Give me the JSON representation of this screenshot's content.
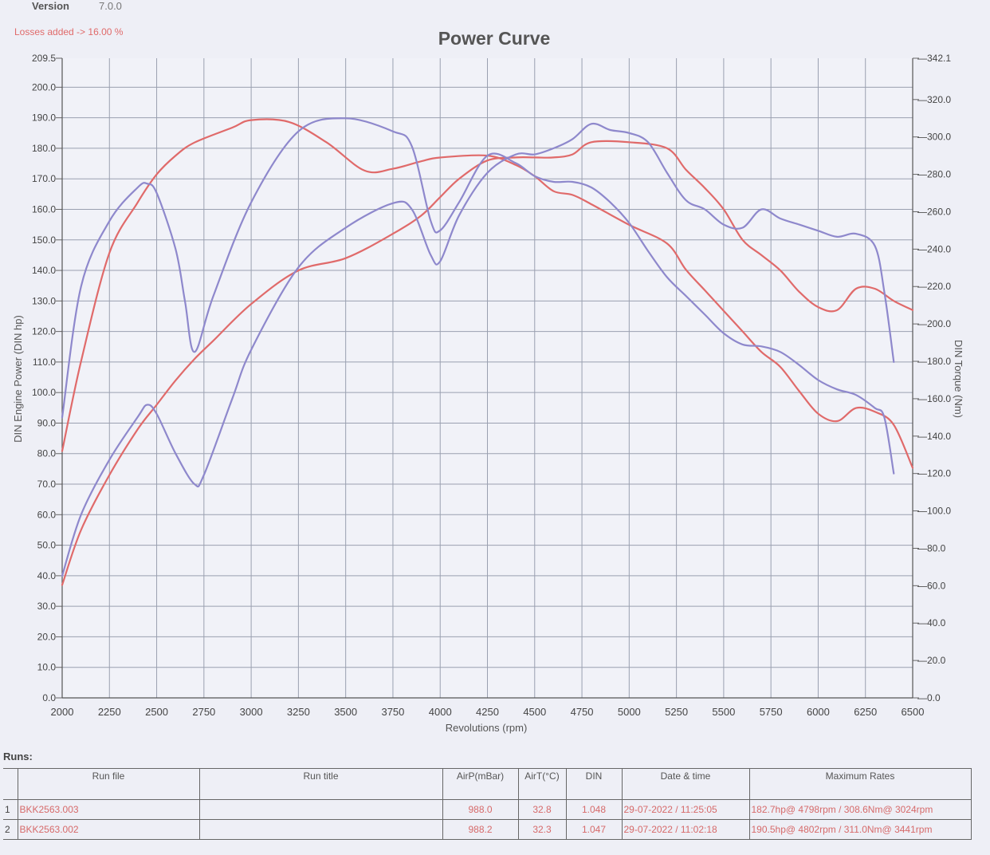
{
  "header": {
    "version_label": "Version",
    "version_value": "7.0.0",
    "losses_note": "Losses added -> 16.00 %"
  },
  "chart_data": {
    "type": "line",
    "title": "Power Curve",
    "xlabel": "Revolutions (rpm)",
    "ylabel_left": "DIN Engine Power (DIN hp)",
    "ylabel_right": "DIN Torque (Nm)",
    "xlim": [
      2000,
      6500
    ],
    "ylim_left": [
      0,
      209.5
    ],
    "ylim_right": [
      0,
      342.1
    ],
    "grid": true,
    "x_ticks": [
      2000,
      2250,
      2500,
      2750,
      3000,
      3250,
      3500,
      3750,
      4000,
      4250,
      4500,
      4750,
      5000,
      5250,
      5500,
      5750,
      6000,
      6250,
      6500
    ],
    "x_tick_labels": [
      "2000",
      "2250",
      "2500",
      "2750",
      "3000",
      "3250",
      "3500",
      "3750",
      "4000",
      "4250",
      "4500",
      "4750",
      "5000",
      "5250",
      "5500",
      "5750",
      "6000",
      "6250",
      "6500"
    ],
    "left_ticks": [
      0,
      10,
      20,
      30,
      40,
      50,
      60,
      70,
      80,
      90,
      100,
      110,
      120,
      130,
      140,
      150,
      160,
      170,
      180,
      190,
      200,
      209.5
    ],
    "left_tick_labels": [
      "0.0",
      "10.0",
      "20.0",
      "30.0",
      "40.0",
      "50.0",
      "60.0",
      "70.0",
      "80.0",
      "90.0",
      "100.0",
      "110.0",
      "120.0",
      "130.0",
      "140.0",
      "150.0",
      "160.0",
      "170.0",
      "180.0",
      "190.0",
      "200.0",
      "209.5"
    ],
    "right_ticks": [
      0,
      20,
      40,
      60,
      80,
      100,
      120,
      140,
      160,
      180,
      200,
      220,
      240,
      260,
      280,
      300,
      320,
      342.1
    ],
    "right_tick_labels": [
      "0.0",
      "20.0",
      "40.0",
      "60.0",
      "80.0",
      "100.0",
      "120.0",
      "140.0",
      "160.0",
      "180.0",
      "200.0",
      "220.0",
      "240.0",
      "260.0",
      "280.0",
      "300.0",
      "320.0",
      "342.1"
    ],
    "series": [
      {
        "run": 1,
        "quantity": "power",
        "axis": "left",
        "color": "#e06a6a",
        "x": [
          2000,
          2100,
          2250,
          2400,
          2500,
          2600,
          2700,
          2800,
          3000,
          3250,
          3500,
          3750,
          3900,
          4000,
          4100,
          4250,
          4400,
          4500,
          4600,
          4700,
          4800,
          5000,
          5200,
          5300,
          5400,
          5500,
          5600,
          5700,
          5800,
          5900,
          6000,
          6100,
          6200,
          6300,
          6400,
          6500
        ],
        "y": [
          37,
          55,
          73,
          88,
          96,
          104,
          111,
          117,
          129,
          140,
          144,
          152,
          158,
          164,
          170,
          176,
          177,
          177,
          177,
          178,
          182,
          182,
          180,
          173,
          167,
          160,
          150,
          145,
          140,
          133,
          128,
          127,
          134,
          134,
          130,
          127
        ]
      },
      {
        "run": 1,
        "quantity": "torque",
        "axis": "right",
        "color": "#e06a6a",
        "x": [
          2000,
          2100,
          2250,
          2400,
          2500,
          2600,
          2700,
          2900,
          3000,
          3200,
          3400,
          3600,
          3750,
          3900,
          4000,
          4250,
          4400,
          4500,
          4600,
          4700,
          4800,
          5000,
          5200,
          5300,
          5400,
          5500,
          5600,
          5700,
          5800,
          5900,
          6000,
          6100,
          6200,
          6300,
          6400,
          6500
        ],
        "y": [
          132,
          180,
          238,
          265,
          280,
          290,
          297,
          305,
          309,
          308,
          297,
          282,
          283,
          287,
          289,
          290,
          285,
          279,
          271,
          269,
          264,
          253,
          243,
          229,
          218,
          207,
          196,
          185,
          177,
          164,
          152,
          148,
          155,
          153,
          146,
          123
        ]
      },
      {
        "run": 2,
        "quantity": "power",
        "axis": "left",
        "color": "#8e88cc",
        "x": [
          2000,
          2100,
          2250,
          2400,
          2450,
          2500,
          2600,
          2700,
          2750,
          2900,
          3000,
          3250,
          3500,
          3750,
          3850,
          3950,
          4000,
          4100,
          4250,
          4400,
          4500,
          4600,
          4700,
          4800,
          4900,
          5000,
          5100,
          5200,
          5300,
          5400,
          5500,
          5600,
          5700,
          5800,
          5900,
          6000,
          6100,
          6200,
          6300,
          6350,
          6400
        ],
        "y": [
          40,
          60,
          78,
          92,
          96,
          93,
          80,
          70,
          73,
          98,
          114,
          141,
          154,
          162,
          160,
          145,
          143,
          158,
          172,
          178,
          178,
          180,
          183,
          188,
          186,
          185,
          182,
          172,
          163,
          160,
          155,
          154,
          160,
          157,
          155,
          153,
          151,
          152,
          148,
          133,
          110
        ]
      },
      {
        "run": 2,
        "quantity": "torque",
        "axis": "right",
        "color": "#8e88cc",
        "x": [
          2000,
          2100,
          2250,
          2400,
          2450,
          2500,
          2600,
          2650,
          2700,
          2800,
          3000,
          3250,
          3500,
          3750,
          3850,
          3950,
          4000,
          4100,
          4250,
          4400,
          4500,
          4600,
          4700,
          4800,
          4900,
          5000,
          5100,
          5200,
          5300,
          5400,
          5500,
          5600,
          5700,
          5800,
          5900,
          6000,
          6100,
          6200,
          6300,
          6350,
          6400
        ],
        "y": [
          150,
          220,
          255,
          273,
          275,
          270,
          240,
          212,
          185,
          215,
          265,
          303,
          310,
          303,
          295,
          255,
          250,
          265,
          290,
          286,
          279,
          276,
          276,
          273,
          265,
          254,
          239,
          225,
          215,
          205,
          195,
          189,
          188,
          185,
          178,
          170,
          165,
          162,
          155,
          150,
          120
        ]
      }
    ]
  },
  "runs": {
    "heading": "Runs:",
    "columns": [
      "Run file",
      "Run title",
      "AirP(mBar)",
      "AirT(°C)",
      "DIN",
      "Date & time",
      "Maximum Rates"
    ],
    "rows": [
      {
        "index": "1",
        "run_file": "BKK2563.003",
        "run_title": "",
        "airp": "988.0",
        "airt": "32.8",
        "din": "1.048",
        "datetime": "29-07-2022 / 11:25:05",
        "max_rates": "182.7hp@ 4798rpm / 308.6Nm@ 3024rpm"
      },
      {
        "index": "2",
        "run_file": "BKK2563.002",
        "run_title": "",
        "airp": "988.2",
        "airt": "32.3",
        "din": "1.047",
        "datetime": "29-07-2022 / 11:02:18",
        "max_rates": "190.5hp@ 4802rpm / 311.0Nm@ 3441rpm"
      }
    ]
  }
}
